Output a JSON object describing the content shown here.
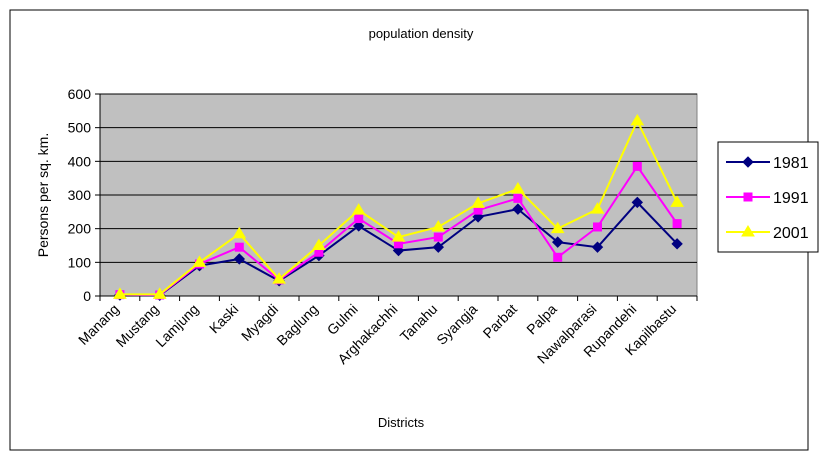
{
  "chart_data": {
    "type": "line",
    "title": "population density",
    "xlabel": "Districts",
    "ylabel": "Persons per sq. km.",
    "ylim": [
      0,
      600
    ],
    "yticks": [
      0,
      100,
      200,
      300,
      400,
      500,
      600
    ],
    "grid": true,
    "legend_position": "right",
    "plot_background": "#c0c0c0",
    "categories": [
      "Manang",
      "Mustang",
      "Lamjung",
      "Kaski",
      "Myagdi",
      "Baglung",
      "Gulmi",
      "Arghakachhi",
      "Tanahu",
      "Syangja",
      "Parbat",
      "Palpa",
      "Nawalparasi",
      "Rupandehi",
      "Kapilbastu"
    ],
    "series": [
      {
        "name": "1981",
        "color": "#000080",
        "marker": "diamond",
        "values": [
          3,
          2,
          90,
          110,
          45,
          120,
          208,
          135,
          145,
          235,
          258,
          160,
          145,
          278,
          155
        ]
      },
      {
        "name": "1991",
        "color": "#ff00ff",
        "marker": "square",
        "values": [
          4,
          3,
          95,
          145,
          48,
          130,
          230,
          155,
          175,
          255,
          290,
          115,
          205,
          385,
          215
        ]
      },
      {
        "name": "2001",
        "color": "#ffff00",
        "marker": "triangle",
        "values": [
          5,
          5,
          100,
          185,
          50,
          150,
          255,
          175,
          205,
          275,
          318,
          200,
          258,
          520,
          278
        ]
      }
    ]
  }
}
